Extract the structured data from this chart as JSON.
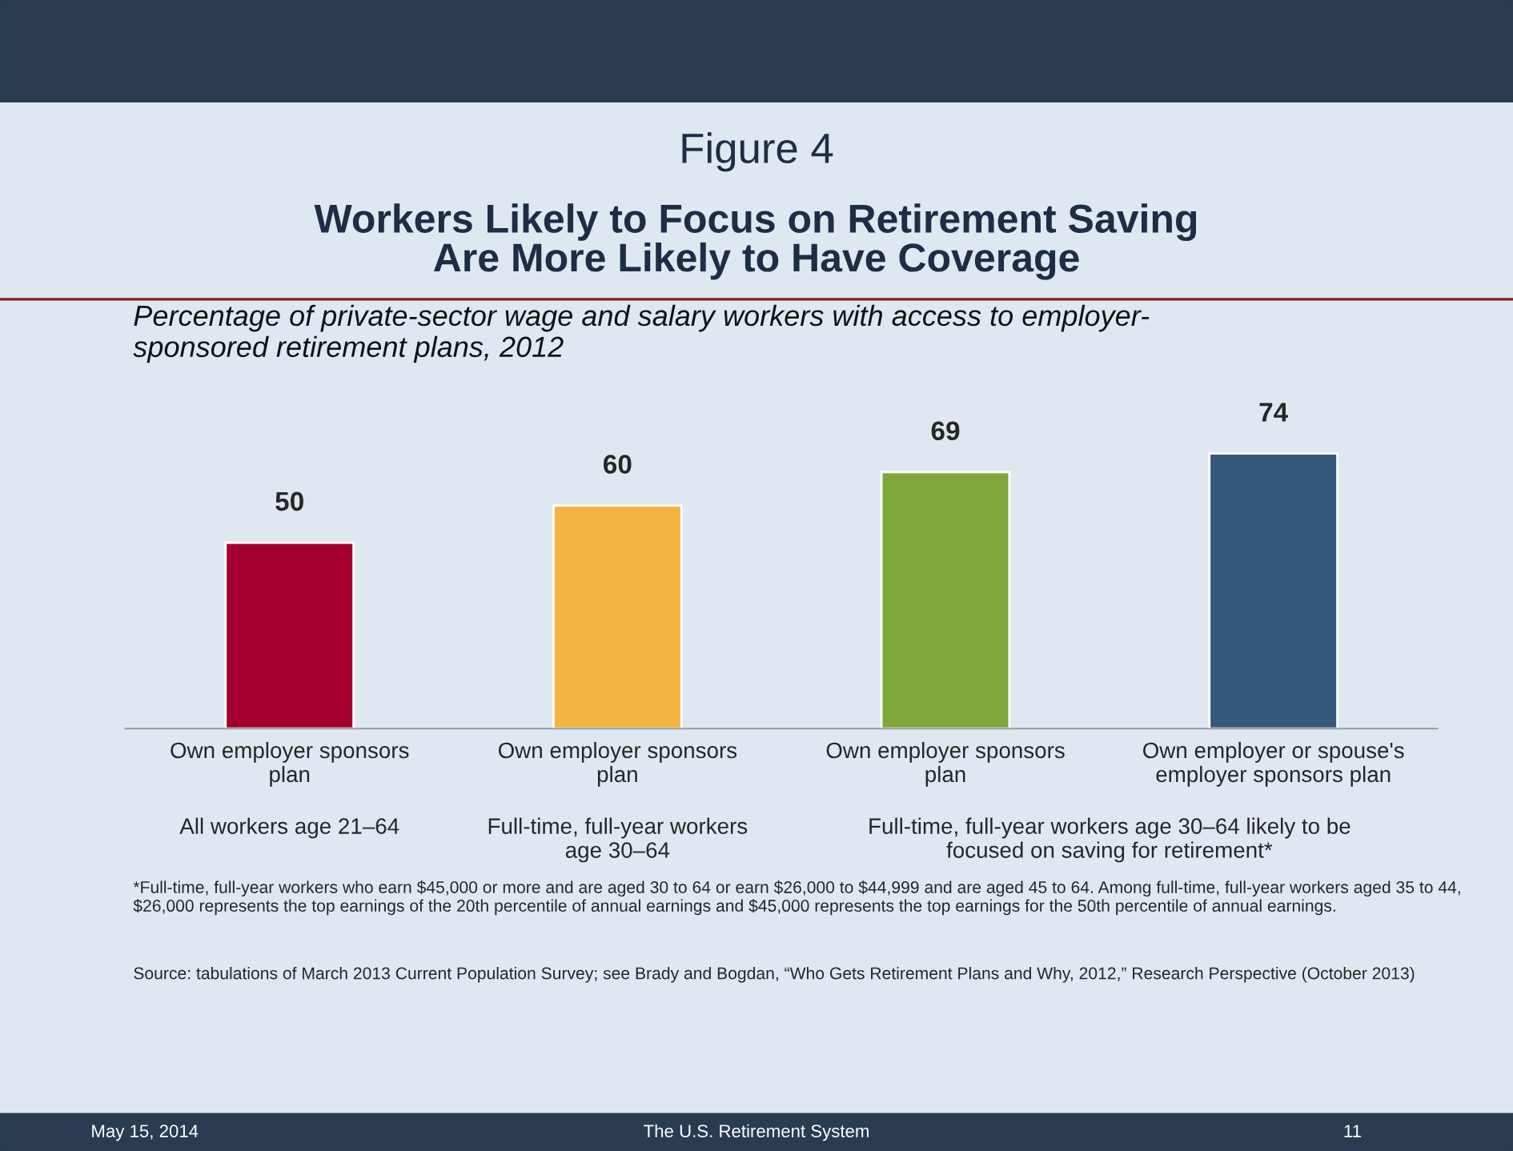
{
  "chart_data": {
    "type": "bar",
    "title": "Figure 4\nWorkers Likely to Focus on Retirement Saving\nAre More Likely to Have Coverage",
    "subtitle": "Percentage of private-sector wage and salary workers with access to employer-\nsponsored retirement plans, 2012",
    "categories": [
      "Own employer sponsors\nplan",
      "Own employer sponsors\nplan",
      "Own employer sponsors\nplan",
      "Own employer or spouse's\nemployer sponsors plan"
    ],
    "values": [
      50,
      60,
      69,
      74
    ],
    "colors": [
      "#a3002f",
      "#f2b342",
      "#7ea83a",
      "#35597d"
    ],
    "data_labels": true,
    "tick_labels": "x",
    "grid": false,
    "legend": false,
    "annotations": [
      "All workers age 21–64",
      "Full-time, full-year workers\nage 30–64",
      "Full-time, full-year workers age 30–64 likely to be\nfocused on saving for retirement*",
      "*Full-time, full-year workers who earn $45,000 or more and are aged 30 to 64 or earn $26,000 to $44,999 and are aged 45 to 64. Among full-time, full-year workers aged 35 to 44, $26,000 represents the top earnings of the 20th percentile of annual earnings and $45,000 represents the top earnings for the 50th percentile of annual earnings.",
      "Source: tabulations of March 2013 Current Population Survey; see Brady and Bogdan, “Who Gets Retirement Plans and Why, 2012,” Research Perspective (October 2013)",
      "May 15, 2014",
      "The U.S. Retirement System",
      "11"
    ]
  }
}
